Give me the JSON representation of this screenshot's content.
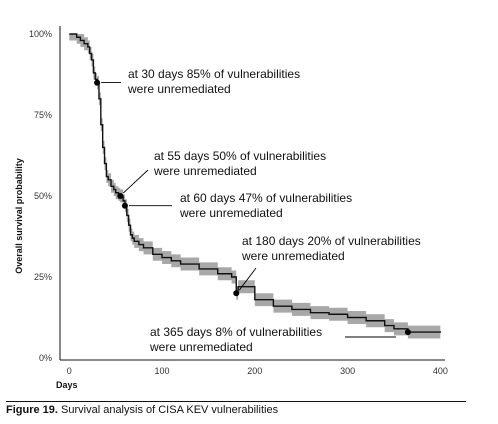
{
  "chart_data": {
    "type": "line",
    "ylabel": "Overall survival probability",
    "xlabel": "Days",
    "xlim": [
      -10,
      405
    ],
    "ylim": [
      0,
      100
    ],
    "xticks": [
      0,
      100,
      200,
      300,
      400
    ],
    "yticks": [
      0,
      25,
      50,
      75,
      100
    ],
    "ytick_labels": [
      "0%",
      "25%",
      "50%",
      "75%",
      "100%"
    ],
    "grid": false,
    "series": [
      {
        "x": [
          0,
          8,
          12,
          16,
          20,
          22,
          24,
          26,
          28,
          30,
          32,
          34,
          36,
          38,
          40,
          42,
          45,
          48,
          50,
          53,
          55,
          58,
          60,
          62,
          64,
          66,
          68,
          70,
          75,
          80,
          90,
          100,
          110,
          120,
          140,
          160,
          175,
          180,
          182,
          200,
          220,
          240,
          260,
          280,
          300,
          320,
          340,
          350,
          365,
          380,
          400
        ],
        "y": [
          100,
          99,
          98,
          97,
          96,
          94,
          92,
          88,
          86,
          85,
          80,
          72,
          65,
          60,
          56,
          55,
          53,
          52,
          51,
          50.5,
          50,
          48.5,
          47,
          44,
          41,
          38,
          37,
          36,
          35,
          34,
          32,
          31,
          30,
          29,
          27.5,
          26,
          25,
          20,
          22,
          18,
          16,
          15,
          14,
          13.5,
          12.5,
          11.5,
          10,
          9,
          8,
          8,
          7.8
        ],
        "ci_halfwidth": 1.6
      }
    ],
    "markers": [
      {
        "x": 30,
        "y": 85
      },
      {
        "x": 55,
        "y": 50
      },
      {
        "x": 60,
        "y": 47
      },
      {
        "x": 180,
        "y": 20
      },
      {
        "x": 365,
        "y": 8
      }
    ],
    "annotations": [
      {
        "line1": "at 30 days 85% of vulnerabilities",
        "line2": "were unremediated"
      },
      {
        "line1": "at 55 days 50% of vulnerabilities",
        "line2": "were unremediated"
      },
      {
        "line1": "at 60 days 47% of vulnerabilities",
        "line2": "were unremediated"
      },
      {
        "line1": "at 180 days 20% of vulnerabilities",
        "line2": "were unremediated"
      },
      {
        "line1": "at 365 days 8% of vulnerabilities",
        "line2": "were unremediated"
      }
    ]
  },
  "caption": {
    "label": "Figure 19.",
    "text": " Survival analysis of CISA KEV vulnerabilities"
  },
  "colors": {
    "line": "#111111",
    "ci_band": "#a8a8a8",
    "axis": "#111111"
  }
}
